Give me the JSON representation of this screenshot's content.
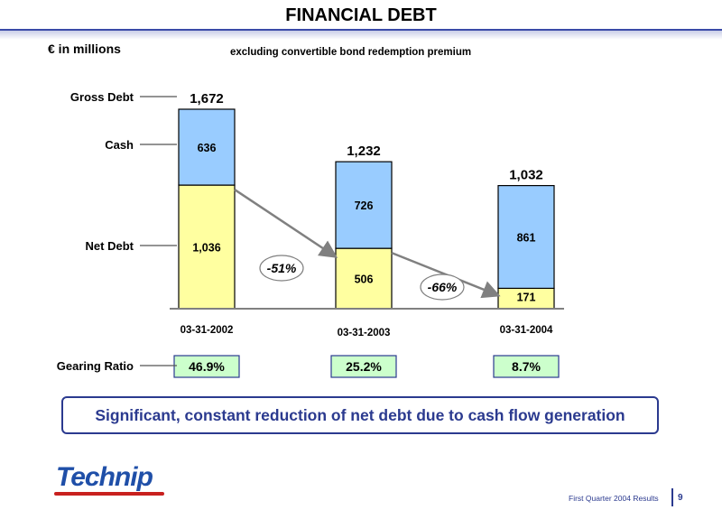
{
  "header": {
    "title": "FINANCIAL DEBT",
    "unit_label": "€ in millions",
    "subtitle": "excluding convertible bond redemption premium"
  },
  "chart_data": {
    "type": "bar",
    "stacked": true,
    "categories": [
      "03-31-2002",
      "03-31-2003",
      "03-31-2004"
    ],
    "series": [
      {
        "name": "Net Debt",
        "values": [
          1036,
          506,
          171
        ],
        "value_labels": [
          "1,036",
          "506",
          "171"
        ],
        "color": "#ffffa0"
      },
      {
        "name": "Cash",
        "values": [
          636,
          726,
          861
        ],
        "value_labels": [
          "636",
          "726",
          "861"
        ],
        "color": "#99ccff"
      }
    ],
    "totals": {
      "name": "Gross Debt",
      "values": [
        1672,
        1232,
        1032
      ],
      "value_labels": [
        "1,672",
        "1,232",
        "1,032"
      ]
    },
    "changes": [
      {
        "from": "03-31-2002",
        "to": "03-31-2003",
        "label": "-51%"
      },
      {
        "from": "03-31-2003",
        "to": "03-31-2004",
        "label": "-66%"
      }
    ],
    "row_labels": {
      "gross_debt": "Gross Debt",
      "cash": "Cash",
      "net_debt": "Net Debt",
      "gearing_ratio": "Gearing Ratio"
    },
    "gearing_ratio": [
      "46.9%",
      "25.2%",
      "8.7%"
    ],
    "ylim": [
      0,
      1800
    ]
  },
  "callout": {
    "text": "Significant, constant reduction of net debt due to cash flow generation"
  },
  "footer": {
    "logo": "Technip",
    "text": "First Quarter 2004 Results",
    "page_number": "9"
  }
}
